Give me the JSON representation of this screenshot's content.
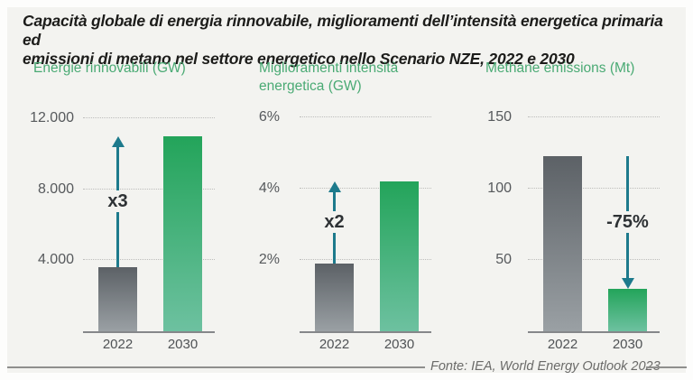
{
  "title": {
    "line1": "Capacità globale di energia rinnovabile, miglioramenti dell’intensità energetica primaria ed",
    "line2": "emissioni di metano nel settore energetico nello Scenario NZE, 2022 e 2030"
  },
  "footer": {
    "source": "Fonte: IEA, World Energy Outlook 2023"
  },
  "colors": {
    "card_background": "#f3f3f0",
    "header_green": "#4aaa74",
    "bar_gray_top": "#5c6166",
    "bar_gray_bottom": "#9aa0a4",
    "bar_green_top": "#23a45a",
    "bar_green_bottom": "#6dc1a0",
    "arrow_teal": "#1d7a8c",
    "axis_text": "#56595c"
  },
  "chart_data": [
    {
      "type": "bar",
      "title": "Energie rinnovabili (GW)",
      "categories": [
        "2022",
        "2030"
      ],
      "values": [
        3600,
        11000
      ],
      "ticks": [
        {
          "label": "4.000",
          "value": 4000
        },
        {
          "label": "8.000",
          "value": 8000
        },
        {
          "label": "12.000",
          "value": 12000
        }
      ],
      "ylim": [
        0,
        12450
      ],
      "grid": "dotted",
      "annotation": {
        "text": "x3",
        "direction": "up",
        "bar": 0
      }
    },
    {
      "type": "bar",
      "title": "Miglioramenti intensità energetica (GW)",
      "categories": [
        "2022",
        "2030"
      ],
      "values": [
        1.9,
        4.2
      ],
      "ticks": [
        {
          "label": "2%",
          "value": 2
        },
        {
          "label": "4%",
          "value": 4
        },
        {
          "label": "6%",
          "value": 6
        }
      ],
      "ylim": [
        0,
        6.2
      ],
      "grid": "dotted",
      "annotation": {
        "text": "x2",
        "direction": "up",
        "bar": 0
      }
    },
    {
      "type": "bar",
      "title": "Methane emissions (Mt)",
      "categories": [
        "2022",
        "2030"
      ],
      "values": [
        123,
        30
      ],
      "ticks": [
        {
          "label": "50",
          "value": 50
        },
        {
          "label": "100",
          "value": 100
        },
        {
          "label": "150",
          "value": 150
        }
      ],
      "ylim": [
        0,
        155
      ],
      "grid": "dotted",
      "annotation": {
        "text": "-75%",
        "direction": "down",
        "bar": 1
      }
    }
  ]
}
